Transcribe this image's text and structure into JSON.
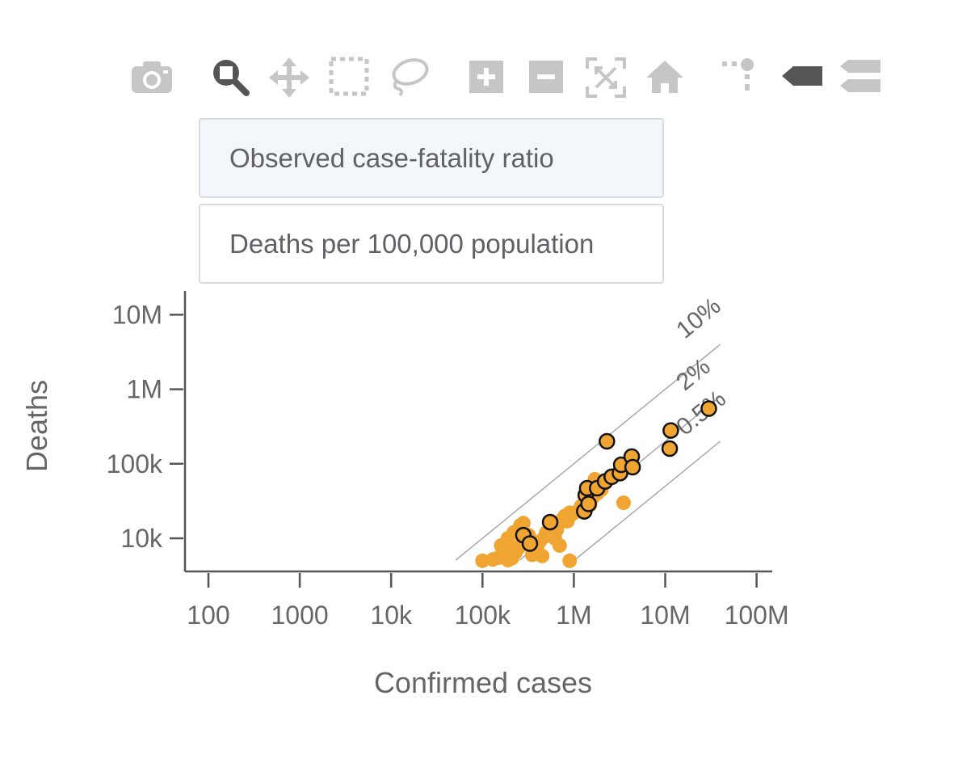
{
  "modebar": {
    "buttons": [
      {
        "name": "camera-icon",
        "title": "Download plot as a png",
        "active": false
      },
      {
        "name": "zoom-icon",
        "title": "Zoom",
        "active": true
      },
      {
        "name": "pan-icon",
        "title": "Pan",
        "active": false
      },
      {
        "name": "box-select-icon",
        "title": "Box Select",
        "active": false
      },
      {
        "name": "lasso-select-icon",
        "title": "Lasso Select",
        "active": false
      },
      {
        "name": "zoom-in-icon",
        "title": "Zoom in",
        "active": false
      },
      {
        "name": "zoom-out-icon",
        "title": "Zoom out",
        "active": false
      },
      {
        "name": "autoscale-icon",
        "title": "Autoscale",
        "active": false
      },
      {
        "name": "reset-axes-icon",
        "title": "Reset axes",
        "active": false
      },
      {
        "name": "spike-lines-icon",
        "title": "Toggle Spike Lines",
        "active": false
      },
      {
        "name": "hover-closest-icon",
        "title": "Show closest data on hover",
        "active": true
      },
      {
        "name": "hover-compare-icon",
        "title": "Compare data on hover",
        "active": false
      }
    ]
  },
  "selector": {
    "options": [
      {
        "label": "Observed case-fatality ratio",
        "active": true
      },
      {
        "label": "Deaths per 100,000 population",
        "active": false
      }
    ]
  },
  "chart_data": {
    "type": "scatter",
    "xlabel": "Confirmed cases",
    "ylabel": "Deaths",
    "x_scale": "log",
    "y_scale": "log",
    "xlim": [
      60,
      160000000
    ],
    "ylim": [
      3500,
      25000000
    ],
    "x_ticks": [
      {
        "value": 100,
        "label": "100"
      },
      {
        "value": 1000,
        "label": "1000"
      },
      {
        "value": 10000,
        "label": "10k"
      },
      {
        "value": 100000,
        "label": "100k"
      },
      {
        "value": 1000000,
        "label": "1M"
      },
      {
        "value": 10000000,
        "label": "10M"
      },
      {
        "value": 100000000,
        "label": "100M"
      }
    ],
    "y_ticks": [
      {
        "value": 10000,
        "label": "10k"
      },
      {
        "value": 100000,
        "label": "100k"
      },
      {
        "value": 1000000,
        "label": "1M"
      },
      {
        "value": 10000000,
        "label": "10M"
      }
    ],
    "reference_lines": [
      {
        "label": "10%",
        "ratio": 0.1,
        "x_range": [
          50000,
          40000000
        ]
      },
      {
        "label": "2%",
        "ratio": 0.02,
        "x_range": [
          250000,
          40000000
        ]
      },
      {
        "label": "0.5%",
        "ratio": 0.005,
        "x_range": [
          1000000,
          40000000
        ]
      }
    ],
    "colors": {
      "point": "#f0a431",
      "outline": "#111111",
      "line": "#a9a9a9",
      "axis": "#555555",
      "text": "#666666"
    },
    "series": [
      {
        "highlighted": false,
        "points": [
          [
            100000,
            5000
          ],
          [
            130000,
            5200
          ],
          [
            150000,
            5500
          ],
          [
            170000,
            6200
          ],
          [
            190000,
            5100
          ],
          [
            200000,
            7000
          ],
          [
            210000,
            5400
          ],
          [
            230000,
            6500
          ],
          [
            250000,
            7500
          ],
          [
            270000,
            8500
          ],
          [
            300000,
            9500
          ],
          [
            320000,
            11000
          ],
          [
            350000,
            6000
          ],
          [
            380000,
            7200
          ],
          [
            400000,
            8000
          ],
          [
            420000,
            9000
          ],
          [
            450000,
            5800
          ],
          [
            480000,
            10500
          ],
          [
            500000,
            12000
          ],
          [
            550000,
            14000
          ],
          [
            600000,
            11000
          ],
          [
            650000,
            13000
          ],
          [
            700000,
            16000
          ],
          [
            750000,
            18000
          ],
          [
            800000,
            20000
          ],
          [
            850000,
            17000
          ],
          [
            900000,
            22000
          ],
          [
            950000,
            21000
          ],
          [
            220000,
            12000
          ],
          [
            260000,
            15000
          ],
          [
            280000,
            16000
          ],
          [
            190000,
            10000
          ],
          [
            160000,
            8000
          ],
          [
            700000,
            8000
          ],
          [
            620000,
            10000
          ],
          [
            900000,
            5000
          ],
          [
            1100000,
            23000
          ],
          [
            1200000,
            27000
          ],
          [
            1300000,
            25000
          ],
          [
            1400000,
            32000
          ],
          [
            1600000,
            35000
          ],
          [
            1800000,
            40000
          ],
          [
            2000000,
            45000
          ],
          [
            2200000,
            55000
          ],
          [
            2500000,
            65000
          ],
          [
            3500000,
            30000
          ],
          [
            1700000,
            62000
          ],
          [
            1500000,
            28000
          ],
          [
            2800000,
            70000
          ],
          [
            1900000,
            50000
          ]
        ]
      },
      {
        "highlighted": true,
        "points": [
          [
            280000,
            11000
          ],
          [
            330000,
            8500
          ],
          [
            550000,
            16500
          ],
          [
            1300000,
            23000
          ],
          [
            1350000,
            38000
          ],
          [
            1400000,
            47000
          ],
          [
            1450000,
            29000
          ],
          [
            1800000,
            47000
          ],
          [
            2200000,
            58000
          ],
          [
            2300000,
            200000
          ],
          [
            2600000,
            67000
          ],
          [
            3200000,
            75000
          ],
          [
            3300000,
            97000
          ],
          [
            4300000,
            125000
          ],
          [
            4400000,
            90000
          ],
          [
            11500000,
            280000
          ],
          [
            11200000,
            160000
          ],
          [
            30000000,
            550000
          ]
        ]
      }
    ]
  }
}
